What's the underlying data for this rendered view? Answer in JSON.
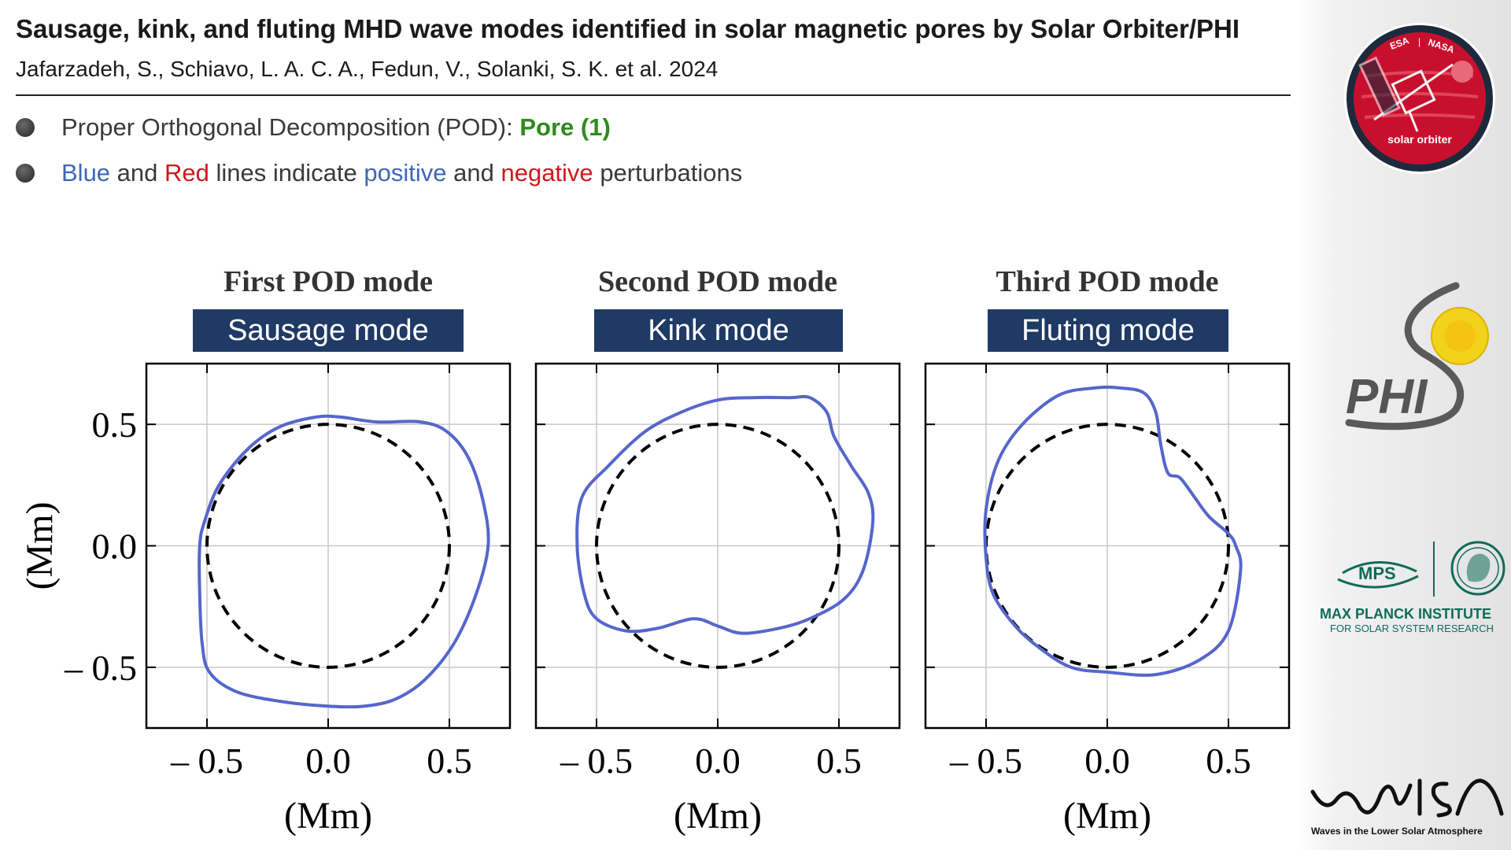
{
  "slide": {
    "title": "Sausage, kink, and fluting MHD wave modes identified in solar magnetic pores by Solar Orbiter/PHI",
    "authors": "Jafarzadeh, S., Schiavo, L. A. C. A., Fedun, V., Solanki, S. K. et al. 2024",
    "bullets": {
      "b1_text": "Proper Orthogonal Decomposition (POD):",
      "b1_highlight": "Pore (1)",
      "b2_blue": "Blue",
      "b2_and1": "and",
      "b2_red": "Red",
      "b2_mid": "lines indicate",
      "b2_positive": "positive",
      "b2_and2": "and",
      "b2_negative": "negative",
      "b2_end": "perturbations"
    }
  },
  "colors": {
    "navy_box": "#1f3a64",
    "curve_blue": "#5566cc",
    "positive_blue": "#3d67b5",
    "negative_red": "#cc1b1b",
    "highlight_green": "#2f8a1c",
    "logo_red": "#c8102e"
  },
  "logos": {
    "solar_orbiter": {
      "agencies_left": "ESA",
      "agencies_right": "NASA",
      "name": "solar orbiter",
      "icon": "spacecraft-icon"
    },
    "phi": {
      "name": "PHI",
      "icon": "sun-icon"
    },
    "mps": {
      "short": "MPS",
      "line1": "MAX PLANCK INSTITUTE",
      "line2": "FOR SOLAR SYSTEM RESEARCH",
      "icon": "minerva-icon"
    },
    "walsa": {
      "name": "WaLSA",
      "tagline": "Waves in the Lower Solar Atmosphere"
    }
  },
  "chart_data": [
    {
      "type": "line",
      "title": "First POD mode",
      "subtitle": "Sausage mode",
      "xlabel": "(Mm)",
      "ylabel": "(Mm)",
      "xlim": [
        -0.75,
        0.75
      ],
      "ylim": [
        -0.75,
        0.75
      ],
      "xticks": [
        -0.5,
        0.0,
        0.5
      ],
      "yticks": [
        -0.5,
        0.0,
        0.5
      ],
      "xtick_labels": [
        "– 0.5",
        "0.0",
        "0.5"
      ],
      "ytick_labels": [
        "0.5",
        "0.0",
        "– 0.5"
      ],
      "grid": true,
      "series": [
        {
          "style": "dashed-black",
          "x": [
            0.5,
            0.48,
            0.433,
            0.354,
            0.25,
            0.129,
            0.0,
            -0.129,
            -0.25,
            -0.354,
            -0.433,
            -0.48,
            -0.5,
            -0.48,
            -0.433,
            -0.354,
            -0.25,
            -0.129,
            0.0,
            0.129,
            0.25,
            0.354,
            0.433,
            0.48,
            0.5
          ],
          "y": [
            0.0,
            0.129,
            0.25,
            0.354,
            0.433,
            0.48,
            0.5,
            0.48,
            0.433,
            0.354,
            0.25,
            0.129,
            0.0,
            -0.129,
            -0.25,
            -0.354,
            -0.433,
            -0.48,
            -0.5,
            -0.48,
            -0.433,
            -0.354,
            -0.25,
            -0.129,
            0.0
          ]
        },
        {
          "style": "solid-blue",
          "x": [
            0.66,
            0.64,
            0.58,
            0.49,
            0.38,
            0.2,
            0.05,
            -0.05,
            -0.2,
            -0.33,
            -0.45,
            -0.51,
            -0.53,
            -0.53,
            -0.52,
            -0.49,
            -0.38,
            -0.2,
            0.0,
            0.15,
            0.28,
            0.4,
            0.52,
            0.61,
            0.66
          ],
          "y": [
            0.0,
            0.18,
            0.36,
            0.47,
            0.51,
            0.51,
            0.53,
            0.53,
            0.49,
            0.4,
            0.25,
            0.1,
            0.0,
            -0.2,
            -0.4,
            -0.52,
            -0.6,
            -0.64,
            -0.66,
            -0.66,
            -0.63,
            -0.55,
            -0.4,
            -0.2,
            0.0
          ]
        }
      ]
    },
    {
      "type": "line",
      "title": "Second POD mode",
      "subtitle": "Kink mode",
      "xlabel": "(Mm)",
      "ylabel": "",
      "xlim": [
        -0.75,
        0.75
      ],
      "ylim": [
        -0.75,
        0.75
      ],
      "xticks": [
        -0.5,
        0.0,
        0.5
      ],
      "yticks": [
        -0.5,
        0.0,
        0.5
      ],
      "xtick_labels": [
        "– 0.5",
        "0.0",
        "0.5"
      ],
      "ytick_labels": [],
      "grid": true,
      "series": [
        {
          "style": "dashed-black",
          "x": [
            0.5,
            0.48,
            0.433,
            0.354,
            0.25,
            0.129,
            0.0,
            -0.129,
            -0.25,
            -0.354,
            -0.433,
            -0.48,
            -0.5,
            -0.48,
            -0.433,
            -0.354,
            -0.25,
            -0.129,
            0.0,
            0.129,
            0.25,
            0.354,
            0.433,
            0.48,
            0.5
          ],
          "y": [
            0.0,
            0.129,
            0.25,
            0.354,
            0.433,
            0.48,
            0.5,
            0.48,
            0.433,
            0.354,
            0.25,
            0.129,
            0.0,
            -0.129,
            -0.25,
            -0.354,
            -0.433,
            -0.48,
            -0.5,
            -0.48,
            -0.433,
            -0.354,
            -0.25,
            -0.129,
            0.0
          ]
        },
        {
          "style": "solid-blue",
          "x": [
            0.64,
            0.62,
            0.55,
            0.48,
            0.45,
            0.38,
            0.3,
            0.15,
            0.0,
            -0.15,
            -0.3,
            -0.45,
            -0.56,
            -0.58,
            -0.55,
            -0.5,
            -0.38,
            -0.25,
            -0.1,
            0.0,
            0.1,
            0.25,
            0.38,
            0.52,
            0.6,
            0.64
          ],
          "y": [
            0.1,
            0.22,
            0.33,
            0.45,
            0.55,
            0.61,
            0.61,
            0.61,
            0.6,
            0.55,
            0.47,
            0.33,
            0.2,
            0.0,
            -0.2,
            -0.3,
            -0.35,
            -0.34,
            -0.3,
            -0.33,
            -0.36,
            -0.34,
            -0.3,
            -0.22,
            -0.1,
            0.1
          ]
        }
      ]
    },
    {
      "type": "line",
      "title": "Third POD mode",
      "subtitle": "Fluting mode",
      "xlabel": "(Mm)",
      "ylabel": "",
      "xlim": [
        -0.75,
        0.75
      ],
      "ylim": [
        -0.75,
        0.75
      ],
      "xticks": [
        -0.5,
        0.0,
        0.5
      ],
      "yticks": [
        -0.5,
        0.0,
        0.5
      ],
      "xtick_labels": [
        "– 0.5",
        "0.0",
        "0.5"
      ],
      "ytick_labels": [],
      "grid": true,
      "series": [
        {
          "style": "dashed-black",
          "x": [
            0.5,
            0.48,
            0.433,
            0.354,
            0.25,
            0.129,
            0.0,
            -0.129,
            -0.25,
            -0.354,
            -0.433,
            -0.48,
            -0.5,
            -0.48,
            -0.433,
            -0.354,
            -0.25,
            -0.129,
            0.0,
            0.129,
            0.25,
            0.354,
            0.433,
            0.48,
            0.5
          ],
          "y": [
            0.0,
            0.129,
            0.25,
            0.354,
            0.433,
            0.48,
            0.5,
            0.48,
            0.433,
            0.354,
            0.25,
            0.129,
            0.0,
            -0.129,
            -0.25,
            -0.354,
            -0.433,
            -0.48,
            -0.5,
            -0.48,
            -0.433,
            -0.354,
            -0.25,
            -0.129,
            0.0
          ]
        },
        {
          "style": "solid-blue",
          "x": [
            0.55,
            0.53,
            0.5,
            0.42,
            0.36,
            0.3,
            0.25,
            0.22,
            0.2,
            0.15,
            0.05,
            -0.05,
            -0.2,
            -0.35,
            -0.45,
            -0.5,
            -0.5,
            -0.47,
            -0.38,
            -0.28,
            -0.15,
            0.0,
            0.2,
            0.38,
            0.5,
            0.55
          ],
          "y": [
            -0.1,
            0.0,
            0.05,
            0.12,
            0.2,
            0.28,
            0.3,
            0.42,
            0.55,
            0.63,
            0.65,
            0.65,
            0.62,
            0.5,
            0.35,
            0.15,
            -0.05,
            -0.2,
            -0.33,
            -0.42,
            -0.5,
            -0.52,
            -0.53,
            -0.47,
            -0.35,
            -0.1
          ]
        }
      ]
    }
  ]
}
